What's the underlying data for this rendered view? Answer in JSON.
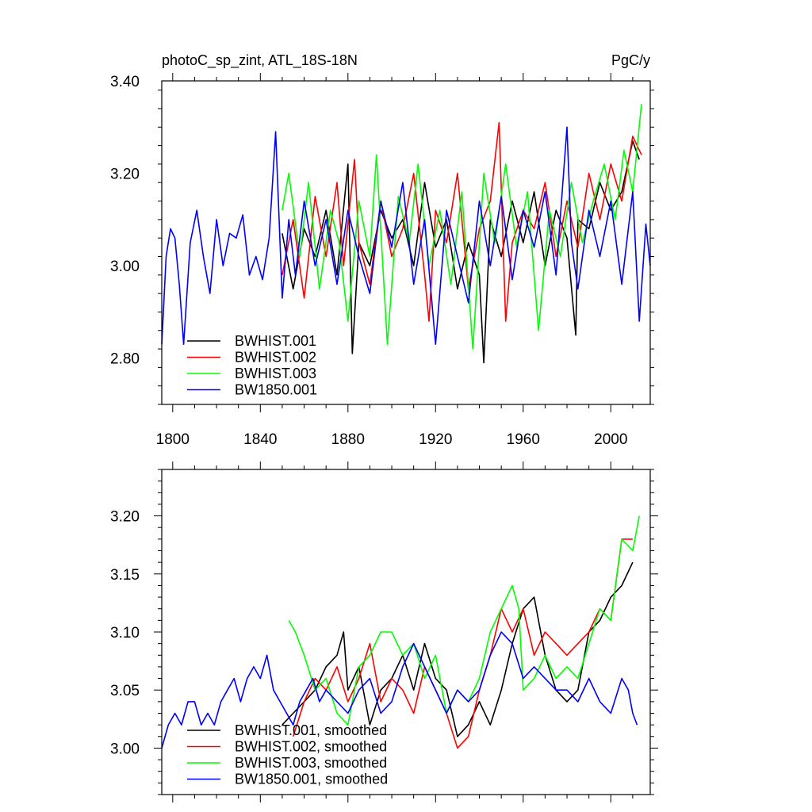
{
  "chart_data": [
    {
      "type": "line",
      "title_left": "photoC_sp_zint, ATL_18S-18N",
      "title_right": "PgC/y",
      "xlim": [
        1795,
        2018
      ],
      "ylim": [
        2.7,
        3.4
      ],
      "x_ticks": [
        1800,
        1840,
        1880,
        1920,
        1960,
        2000
      ],
      "x_tick_labels": [
        "1800",
        "1840",
        "1880",
        "1920",
        "1960",
        "2000"
      ],
      "y_ticks": [
        2.8,
        3.0,
        3.2,
        3.4
      ],
      "y_tick_labels": [
        "2.80",
        "3.00",
        "3.20",
        "3.40"
      ],
      "legend_position": "bottom-left",
      "series": [
        {
          "name": "BWHIST.001",
          "color": "#000000",
          "x": [
            1850,
            1855,
            1860,
            1865,
            1870,
            1875,
            1880,
            1882,
            1885,
            1890,
            1895,
            1900,
            1905,
            1910,
            1915,
            1920,
            1925,
            1930,
            1935,
            1940,
            1942,
            1945,
            1950,
            1955,
            1960,
            1965,
            1970,
            1975,
            1980,
            1984,
            1985,
            1990,
            1995,
            2000,
            2005,
            2010,
            2013
          ],
          "values": [
            3.07,
            2.95,
            3.08,
            3.02,
            3.12,
            2.98,
            3.22,
            2.81,
            3.05,
            3.0,
            3.12,
            3.06,
            3.1,
            3.0,
            3.18,
            3.04,
            3.1,
            2.95,
            3.05,
            2.98,
            2.79,
            3.1,
            3.02,
            3.14,
            3.05,
            3.16,
            3.0,
            3.12,
            3.06,
            2.85,
            3.1,
            3.08,
            3.18,
            3.12,
            3.16,
            3.27,
            3.23
          ]
        },
        {
          "name": "BWHIST.002",
          "color": "#ff0000",
          "x": [
            1850,
            1855,
            1860,
            1865,
            1870,
            1875,
            1878,
            1883,
            1885,
            1890,
            1895,
            1900,
            1905,
            1910,
            1915,
            1917,
            1920,
            1925,
            1930,
            1935,
            1940,
            1945,
            1949,
            1952,
            1955,
            1960,
            1965,
            1970,
            1975,
            1980,
            1985,
            1990,
            1995,
            2000,
            2005,
            2010,
            2014
          ],
          "values": [
            2.98,
            3.1,
            2.93,
            3.15,
            3.02,
            3.18,
            3.0,
            3.23,
            3.05,
            2.96,
            3.14,
            3.02,
            3.08,
            3.2,
            2.98,
            2.88,
            3.12,
            3.05,
            3.2,
            2.95,
            3.08,
            3.14,
            3.31,
            2.88,
            3.05,
            3.12,
            3.08,
            3.18,
            3.02,
            3.14,
            3.04,
            3.2,
            3.1,
            3.22,
            3.14,
            3.28,
            3.24
          ]
        },
        {
          "name": "BWHIST.003",
          "color": "#00ff00",
          "x": [
            1850,
            1853,
            1858,
            1862,
            1867,
            1872,
            1876,
            1880,
            1885,
            1890,
            1893,
            1898,
            1903,
            1908,
            1912,
            1917,
            1922,
            1927,
            1932,
            1937,
            1942,
            1947,
            1952,
            1957,
            1962,
            1967,
            1972,
            1977,
            1982,
            1987,
            1992,
            1997,
            2002,
            2006,
            2010,
            2014
          ],
          "values": [
            3.12,
            3.2,
            3.02,
            3.18,
            2.95,
            3.12,
            3.05,
            2.88,
            3.14,
            3.02,
            3.24,
            2.83,
            3.15,
            3.05,
            3.22,
            3.0,
            3.12,
            2.96,
            3.16,
            2.82,
            3.2,
            3.05,
            3.22,
            3.04,
            3.16,
            2.86,
            3.12,
            3.02,
            3.18,
            3.05,
            3.14,
            3.22,
            3.1,
            3.25,
            3.16,
            3.35
          ]
        },
        {
          "name": "BW1850.001",
          "color": "#0000ff",
          "x": [
            1795,
            1797,
            1799,
            1801,
            1803,
            1805,
            1808,
            1811,
            1814,
            1817,
            1820,
            1823,
            1826,
            1829,
            1832,
            1835,
            1838,
            1841,
            1844,
            1847,
            1850,
            1853,
            1856,
            1860,
            1865,
            1870,
            1875,
            1880,
            1885,
            1890,
            1895,
            1900,
            1905,
            1910,
            1915,
            1920,
            1925,
            1930,
            1935,
            1940,
            1945,
            1950,
            1955,
            1960,
            1965,
            1970,
            1975,
            1980,
            1982,
            1985,
            1990,
            1995,
            2000,
            2005,
            2010,
            2013,
            2016,
            2018
          ],
          "values": [
            2.83,
            3.02,
            3.08,
            3.06,
            2.96,
            2.83,
            3.05,
            3.12,
            3.02,
            2.94,
            3.1,
            3.0,
            3.07,
            3.06,
            3.11,
            2.98,
            3.02,
            2.97,
            3.06,
            3.29,
            2.93,
            3.1,
            2.98,
            3.14,
            3.0,
            3.1,
            2.96,
            3.12,
            3.02,
            2.94,
            3.14,
            3.04,
            3.18,
            2.96,
            3.1,
            2.83,
            3.12,
            3.02,
            2.92,
            3.14,
            3.0,
            3.15,
            2.97,
            3.12,
            3.04,
            3.16,
            2.98,
            3.3,
            3.05,
            2.95,
            3.12,
            3.02,
            3.14,
            2.96,
            3.16,
            2.88,
            3.09,
            3.0
          ]
        }
      ]
    },
    {
      "type": "line",
      "xlim": [
        1795,
        2018
      ],
      "ylim": [
        2.96,
        3.24
      ],
      "x_ticks": [
        1800,
        1840,
        1880,
        1920,
        1960,
        2000
      ],
      "y_ticks": [
        3.0,
        3.05,
        3.1,
        3.15,
        3.2
      ],
      "y_tick_labels": [
        "3.00",
        "3.05",
        "3.10",
        "3.15",
        "3.20"
      ],
      "legend_position": "bottom-left",
      "series": [
        {
          "name": "BWHIST.001, smoothed",
          "color": "#000000",
          "x": [
            1850,
            1855,
            1860,
            1865,
            1870,
            1875,
            1878,
            1880,
            1885,
            1890,
            1895,
            1900,
            1905,
            1910,
            1915,
            1920,
            1925,
            1930,
            1935,
            1940,
            1945,
            1950,
            1955,
            1960,
            1965,
            1970,
            1975,
            1980,
            1985,
            1990,
            1995,
            2000,
            2005,
            2010
          ],
          "values": [
            3.02,
            3.03,
            3.04,
            3.05,
            3.07,
            3.08,
            3.1,
            3.05,
            3.07,
            3.02,
            3.05,
            3.06,
            3.08,
            3.05,
            3.09,
            3.06,
            3.05,
            3.01,
            3.02,
            3.04,
            3.02,
            3.05,
            3.09,
            3.12,
            3.13,
            3.08,
            3.05,
            3.04,
            3.05,
            3.1,
            3.11,
            3.13,
            3.14,
            3.16
          ]
        },
        {
          "name": "BWHIST.002, smoothed",
          "color": "#ff0000",
          "x": [
            1855,
            1860,
            1865,
            1870,
            1875,
            1880,
            1885,
            1890,
            1895,
            1900,
            1905,
            1910,
            1915,
            1920,
            1925,
            1930,
            1935,
            1940,
            1945,
            1950,
            1955,
            1960,
            1965,
            1970,
            1975,
            1980,
            1985,
            1990,
            1995,
            2000,
            2005,
            2010
          ],
          "values": [
            3.01,
            3.04,
            3.06,
            3.05,
            3.07,
            3.04,
            3.06,
            3.09,
            3.04,
            3.06,
            3.05,
            3.03,
            3.07,
            3.05,
            3.03,
            3.0,
            3.01,
            3.05,
            3.08,
            3.12,
            3.1,
            3.12,
            3.08,
            3.1,
            3.09,
            3.08,
            3.09,
            3.1,
            3.12,
            3.11,
            3.18,
            3.18
          ]
        },
        {
          "name": "BWHIST.003, smoothed",
          "color": "#00ff00",
          "x": [
            1853,
            1856,
            1860,
            1865,
            1870,
            1875,
            1880,
            1885,
            1890,
            1895,
            1900,
            1905,
            1910,
            1915,
            1920,
            1925,
            1930,
            1935,
            1940,
            1945,
            1950,
            1955,
            1958,
            1960,
            1965,
            1970,
            1975,
            1980,
            1985,
            1990,
            1995,
            2000,
            2005,
            2010,
            2013
          ],
          "values": [
            3.11,
            3.1,
            3.08,
            3.05,
            3.06,
            3.03,
            3.02,
            3.07,
            3.08,
            3.1,
            3.1,
            3.08,
            3.09,
            3.06,
            3.08,
            3.03,
            3.05,
            3.04,
            3.06,
            3.1,
            3.12,
            3.14,
            3.12,
            3.05,
            3.06,
            3.08,
            3.06,
            3.07,
            3.06,
            3.09,
            3.12,
            3.11,
            3.18,
            3.17,
            3.2
          ]
        },
        {
          "name": "BW1850.001, smoothed",
          "color": "#0000ff",
          "x": [
            1795,
            1798,
            1801,
            1804,
            1807,
            1810,
            1813,
            1816,
            1819,
            1822,
            1825,
            1828,
            1831,
            1834,
            1837,
            1840,
            1843,
            1846,
            1849,
            1852,
            1855,
            1858,
            1861,
            1864,
            1867,
            1870,
            1875,
            1880,
            1885,
            1890,
            1895,
            1900,
            1905,
            1910,
            1915,
            1920,
            1925,
            1930,
            1935,
            1940,
            1945,
            1950,
            1955,
            1960,
            1965,
            1970,
            1975,
            1980,
            1985,
            1990,
            1995,
            2000,
            2005,
            2008,
            2010,
            2012
          ],
          "values": [
            3.0,
            3.02,
            3.03,
            3.02,
            3.04,
            3.04,
            3.02,
            3.03,
            3.02,
            3.04,
            3.05,
            3.06,
            3.04,
            3.06,
            3.07,
            3.06,
            3.08,
            3.05,
            3.04,
            3.03,
            3.02,
            3.04,
            3.05,
            3.06,
            3.04,
            3.05,
            3.04,
            3.03,
            3.05,
            3.06,
            3.03,
            3.04,
            3.07,
            3.09,
            3.07,
            3.05,
            3.03,
            3.05,
            3.04,
            3.05,
            3.08,
            3.1,
            3.09,
            3.06,
            3.07,
            3.06,
            3.05,
            3.05,
            3.04,
            3.06,
            3.04,
            3.03,
            3.06,
            3.05,
            3.03,
            3.02
          ]
        }
      ]
    }
  ]
}
